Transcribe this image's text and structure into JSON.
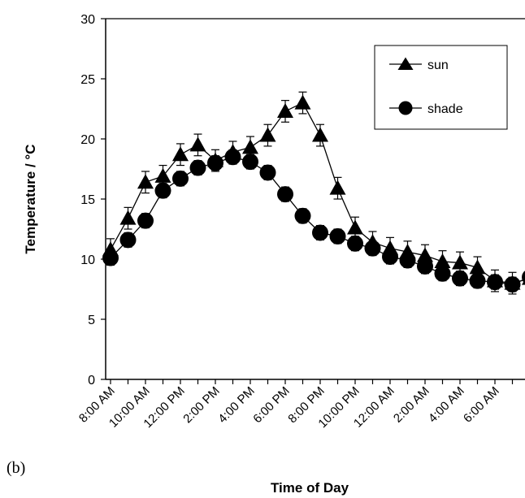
{
  "panel_label": "(b)",
  "chart_data": {
    "type": "line",
    "title": "",
    "xlabel": "Time of Day",
    "ylabel": "Temperature / °C",
    "ylim": [
      0,
      30
    ],
    "yticks": [
      0,
      5,
      10,
      15,
      20,
      25,
      30
    ],
    "categories": [
      "8:00 AM",
      "9:00 AM",
      "10:00 AM",
      "11:00 AM",
      "12:00 PM",
      "1:00 PM",
      "2:00 PM",
      "3:00 PM",
      "4:00 PM",
      "5:00 PM",
      "6:00 PM",
      "7:00 PM",
      "8:00 PM",
      "9:00 PM",
      "10:00 PM",
      "11:00 PM",
      "12:00 AM",
      "1:00 AM",
      "2:00 AM",
      "3:00 AM",
      "4:00 AM",
      "5:00 AM",
      "6:00 AM",
      "7:00 AM",
      "8:00 AM"
    ],
    "tick_labels": [
      "8:00 AM",
      "10:00 AM",
      "12:00 PM",
      "2:00 PM",
      "4:00 PM",
      "6:00 PM",
      "8:00 PM",
      "10:00 PM",
      "12:00 AM",
      "2:00 AM",
      "4:00 AM",
      "6:00 AM"
    ],
    "legend_position": "top-right",
    "grid": false,
    "series": [
      {
        "name": "sun",
        "marker": "triangle",
        "color": "#000000",
        "values": [
          10.8,
          13.4,
          16.4,
          16.9,
          18.7,
          19.5,
          18.2,
          18.9,
          19.3,
          20.3,
          22.3,
          23.0,
          20.3,
          15.9,
          12.6,
          11.4,
          10.9,
          10.6,
          10.3,
          9.8,
          9.7,
          9.3,
          8.2,
          8.0,
          8.4
        ],
        "errors": [
          0.9,
          0.9,
          0.9,
          0.9,
          0.9,
          0.9,
          0.9,
          0.9,
          0.9,
          0.9,
          0.9,
          0.9,
          0.9,
          0.9,
          0.9,
          0.9,
          0.9,
          0.9,
          0.9,
          0.9,
          0.9,
          0.9,
          0.9,
          0.9,
          0.9
        ]
      },
      {
        "name": "shade",
        "marker": "circle",
        "color": "#000000",
        "values": [
          10.1,
          11.6,
          13.2,
          15.7,
          16.7,
          17.6,
          18.0,
          18.5,
          18.1,
          17.2,
          15.4,
          13.6,
          12.2,
          11.9,
          11.3,
          10.9,
          10.2,
          9.9,
          9.4,
          8.8,
          8.4,
          8.2,
          8.1,
          7.9,
          8.5
        ],
        "errors": [
          0.6,
          0.6,
          0.6,
          0.6,
          0.6,
          0.6,
          0.6,
          0.6,
          0.6,
          0.6,
          0.6,
          0.6,
          0.6,
          0.6,
          0.6,
          0.6,
          0.6,
          0.6,
          0.6,
          0.6,
          0.6,
          0.6,
          0.6,
          0.6,
          0.6
        ]
      }
    ]
  }
}
